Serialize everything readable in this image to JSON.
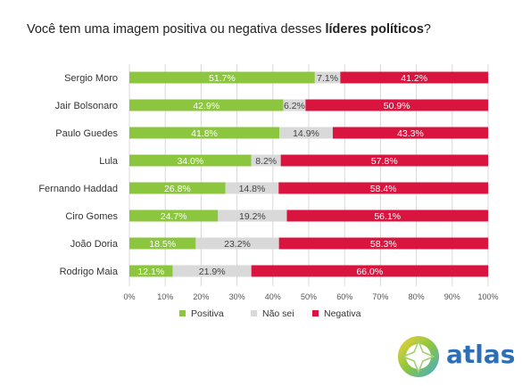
{
  "title": {
    "prefix": "Você tem uma imagem positiva ou negativa desses ",
    "bold": "líderes políticos",
    "suffix": "?"
  },
  "chart_data": {
    "type": "bar",
    "orientation": "horizontal",
    "stacked": true,
    "categories": [
      "Sergio Moro",
      "Jair Bolsonaro",
      "Paulo Guedes",
      "Lula",
      "Fernando Haddad",
      "Ciro Gomes",
      "João Doria",
      "Rodrigo Maia"
    ],
    "series": [
      {
        "name": "Positiva",
        "color": "#8cc63f",
        "values": [
          51.7,
          42.9,
          41.8,
          34.0,
          26.8,
          24.7,
          18.5,
          12.1
        ]
      },
      {
        "name": "Não sei",
        "color": "#d9d9d9",
        "values": [
          7.1,
          6.2,
          14.9,
          8.2,
          14.8,
          19.2,
          23.2,
          21.9
        ]
      },
      {
        "name": "Negativa",
        "color": "#d9143f",
        "values": [
          41.2,
          50.9,
          43.3,
          57.8,
          58.4,
          56.1,
          58.3,
          66.0
        ]
      }
    ],
    "data_labels": [
      [
        "51.7%",
        "7.1%",
        "41.2%"
      ],
      [
        "42.9%",
        "6.2%",
        "50.9%"
      ],
      [
        "41.8%",
        "14.9%",
        "43.3%"
      ],
      [
        "34.0%",
        "8.2%",
        "57.8%"
      ],
      [
        "26.8%",
        "14.8%",
        "58.4%"
      ],
      [
        "24.7%",
        "19.2%",
        "56.1%"
      ],
      [
        "18.5%",
        "23.2%",
        "58.3%"
      ],
      [
        "12.1%",
        "21.9%",
        "66.0%"
      ]
    ],
    "xlim": [
      0,
      100
    ],
    "x_ticks": [
      "0%",
      "10%",
      "20%",
      "30%",
      "40%",
      "50%",
      "60%",
      "70%",
      "80%",
      "90%",
      "100%"
    ],
    "grid": true,
    "legend": "bottom"
  },
  "logo": {
    "text": "atlas"
  }
}
